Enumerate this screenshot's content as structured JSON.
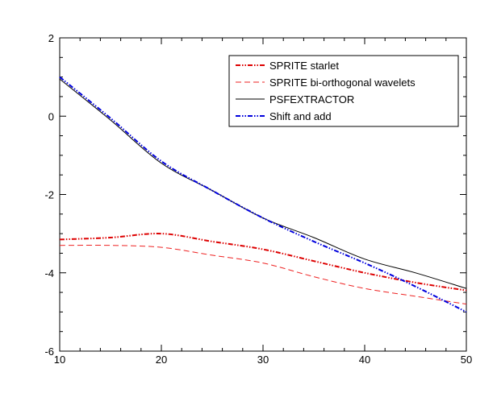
{
  "chart_data": {
    "type": "line",
    "title": "",
    "xlabel": "",
    "ylabel": "",
    "xlim": [
      10,
      50
    ],
    "ylim": [
      -6,
      2
    ],
    "x_ticks": [
      10,
      20,
      30,
      40,
      50
    ],
    "y_ticks": [
      2,
      0,
      -2,
      -4,
      -6
    ],
    "x_tick_labels": [
      "10",
      "20",
      "30",
      "40",
      "50"
    ],
    "y_tick_labels": [
      "2",
      "0",
      "-2",
      "-4",
      "-6"
    ],
    "legend_position": "top-right",
    "series": [
      {
        "name": "SPRITE starlet",
        "color": "#dd0000",
        "style": "dash-dot-dot",
        "x": [
          10,
          15,
          20,
          25,
          30,
          35,
          40,
          45,
          50
        ],
        "y": [
          -3.15,
          -3.1,
          -3.0,
          -3.2,
          -3.4,
          -3.7,
          -4.0,
          -4.25,
          -4.45
        ]
      },
      {
        "name": "SPRITE bi-orthogonal wavelets",
        "color": "#ee2222",
        "style": "dashed",
        "x": [
          10,
          15,
          20,
          25,
          30,
          35,
          40,
          45,
          50
        ],
        "y": [
          -3.3,
          -3.3,
          -3.35,
          -3.55,
          -3.75,
          -4.1,
          -4.4,
          -4.6,
          -4.8
        ]
      },
      {
        "name": "PSFEXTRACTOR",
        "color": "#000000",
        "style": "solid",
        "x": [
          10,
          15,
          20,
          25,
          30,
          35,
          40,
          45,
          50
        ],
        "y": [
          0.95,
          -0.1,
          -1.2,
          -1.9,
          -2.6,
          -3.1,
          -3.65,
          -4.0,
          -4.4
        ]
      },
      {
        "name": "Shift and add",
        "color": "#0000dd",
        "style": "dash-dot-dot",
        "x": [
          10,
          15,
          20,
          25,
          30,
          35,
          40,
          45,
          50
        ],
        "y": [
          1.0,
          -0.05,
          -1.15,
          -1.9,
          -2.6,
          -3.2,
          -3.75,
          -4.35,
          -5.0
        ]
      }
    ]
  }
}
